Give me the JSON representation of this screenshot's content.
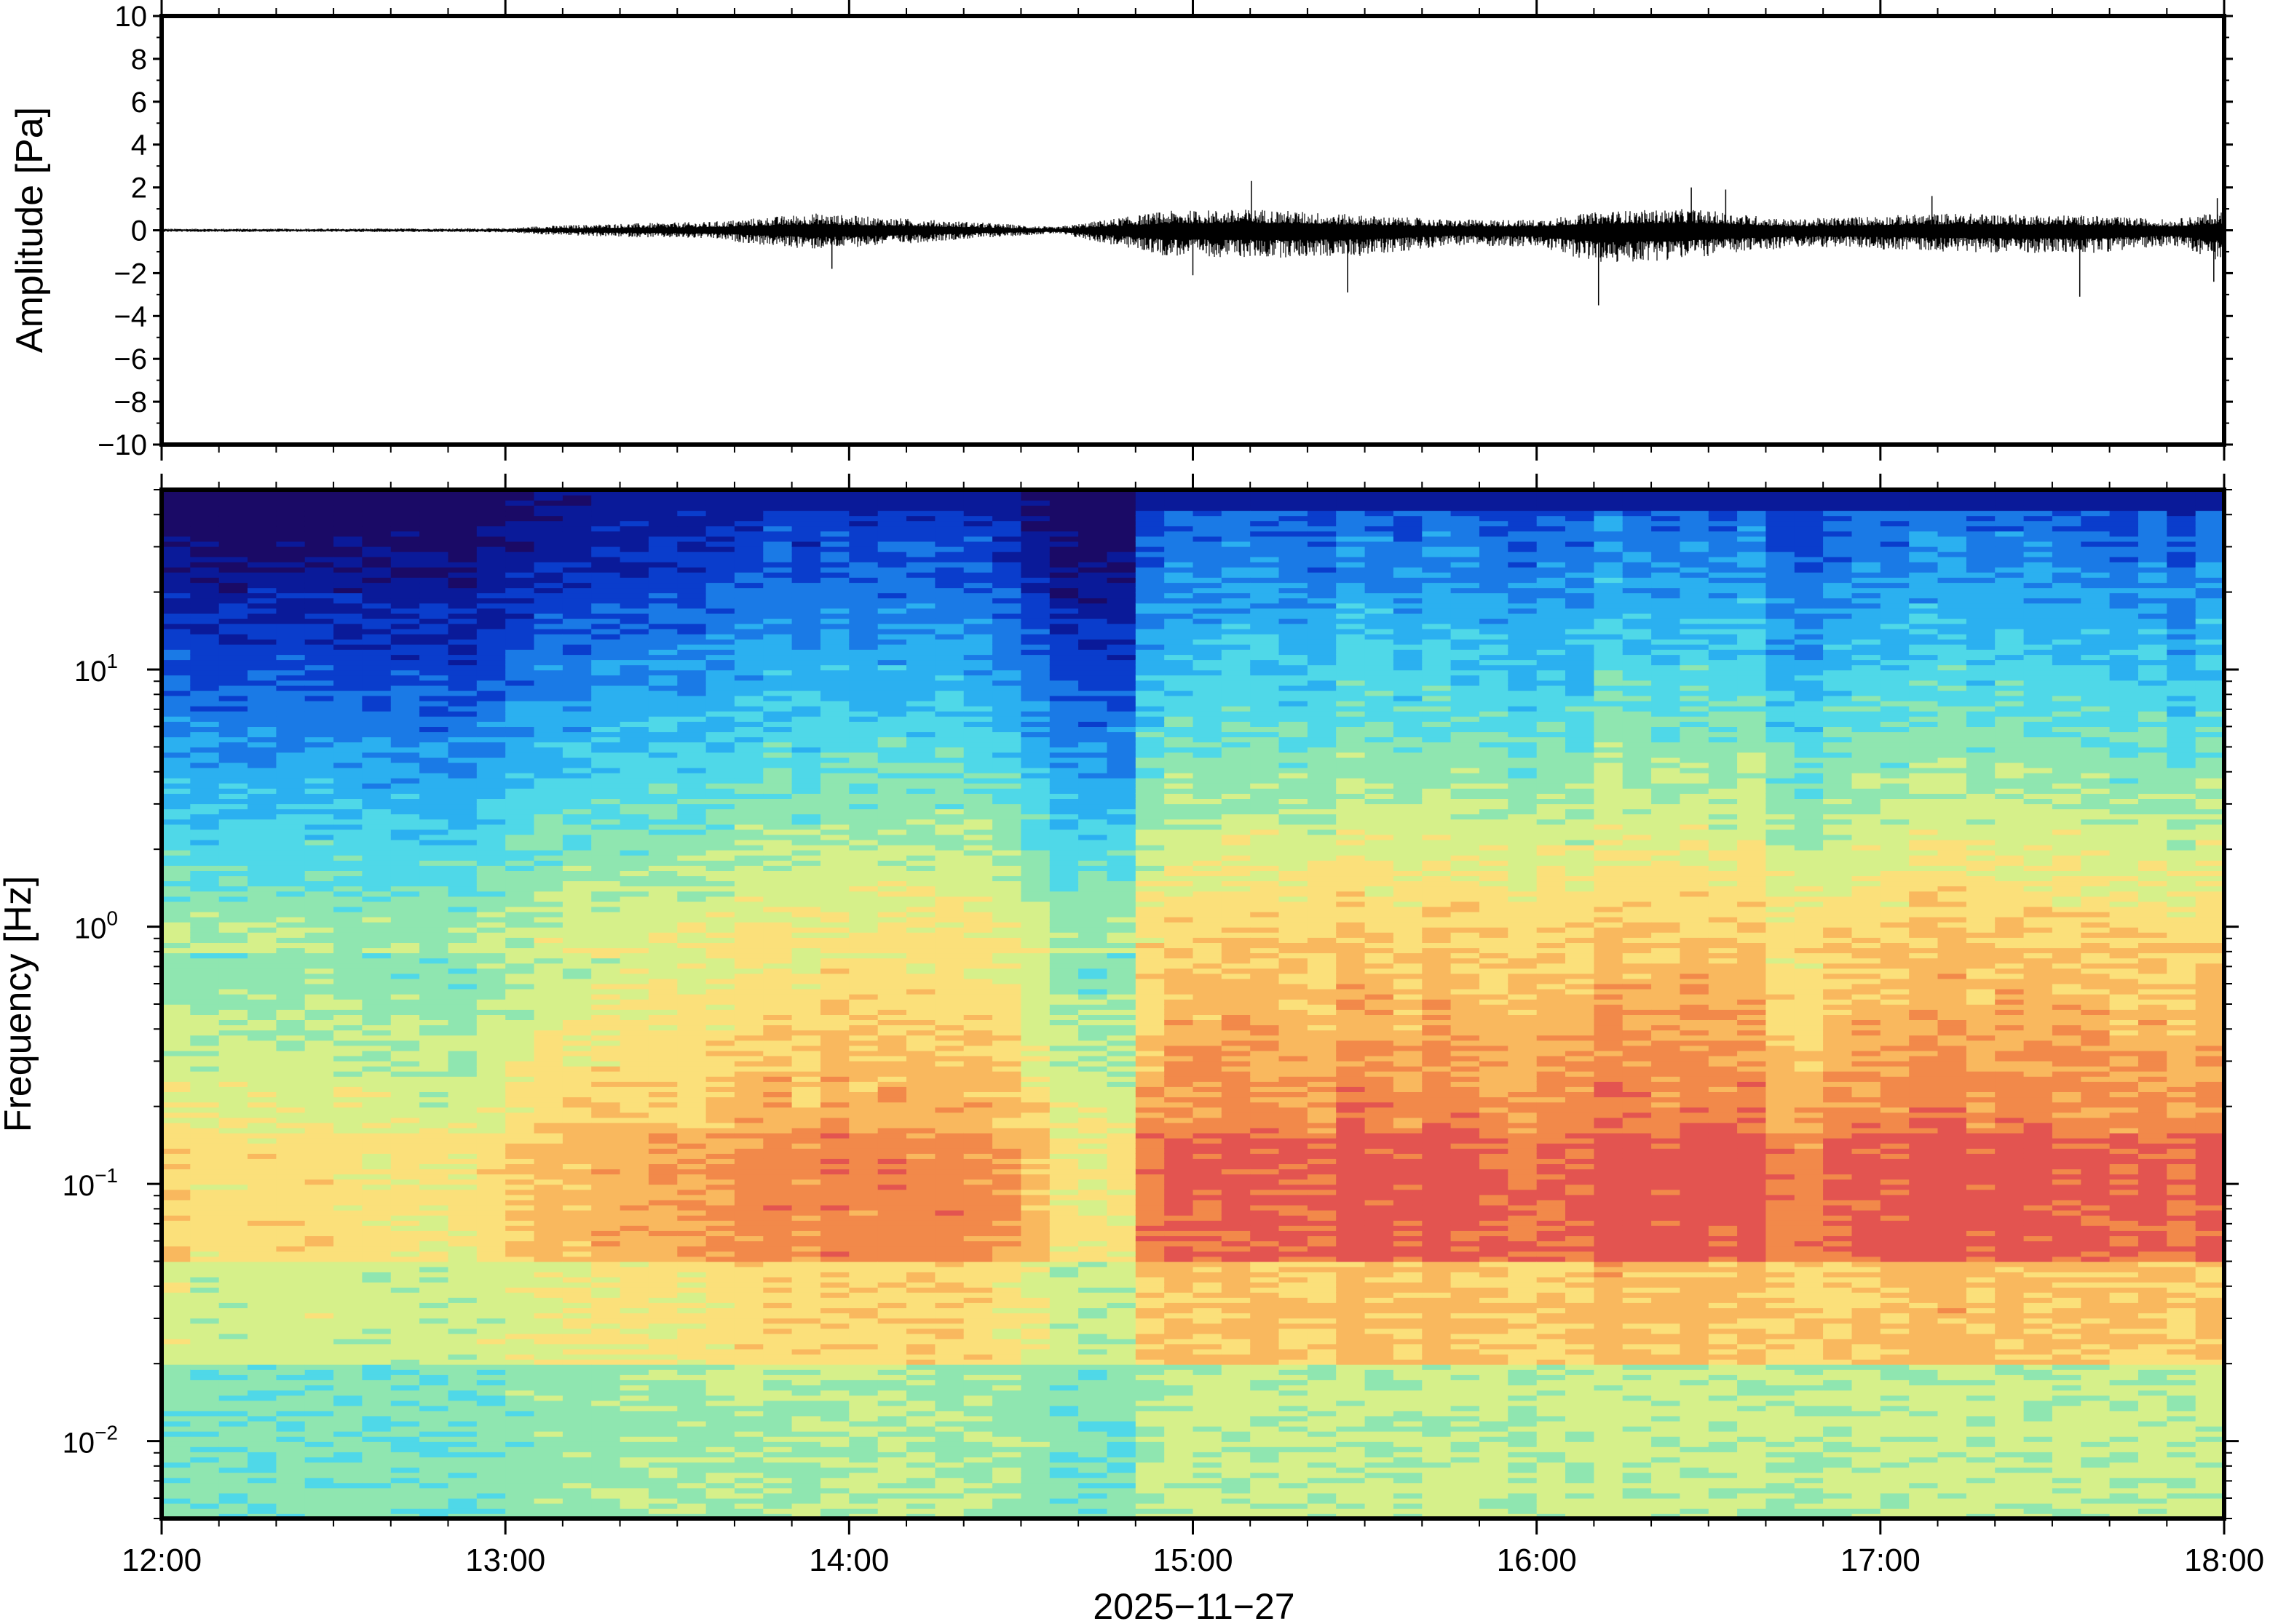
{
  "chart_data": [
    {
      "type": "line",
      "panel": "waveform",
      "ylabel": "Amplitude [Pa]",
      "ylim": [
        -10,
        10
      ],
      "yticks": [
        "10",
        "8",
        "6",
        "4",
        "2",
        "0",
        "−2",
        "−4",
        "−6",
        "−8",
        "−10"
      ],
      "ytick_values": [
        10,
        8,
        6,
        4,
        2,
        0,
        -2,
        -4,
        -6,
        -8,
        -10
      ],
      "xlim_hours": [
        12,
        18
      ],
      "envelope": {
        "hours": [
          12.0,
          12.5,
          13.0,
          13.1,
          13.3,
          13.6,
          13.75,
          13.9,
          14.1,
          14.35,
          14.5,
          14.6,
          14.92,
          15.2,
          15.5,
          15.75,
          16.0,
          16.2,
          16.45,
          16.75,
          16.85,
          17.2,
          17.6,
          17.85,
          18.0
        ],
        "pos": [
          0.08,
          0.08,
          0.1,
          0.2,
          0.3,
          0.4,
          0.6,
          0.8,
          0.6,
          0.4,
          0.25,
          0.15,
          0.9,
          1.0,
          0.7,
          0.5,
          0.5,
          0.9,
          1.0,
          0.5,
          0.6,
          0.8,
          0.7,
          0.5,
          0.9
        ],
        "neg": [
          0.08,
          0.08,
          0.1,
          0.2,
          0.3,
          0.4,
          0.7,
          0.9,
          0.7,
          0.4,
          0.25,
          0.15,
          1.2,
          1.3,
          1.2,
          0.7,
          0.8,
          1.6,
          1.3,
          0.8,
          0.8,
          1.0,
          1.1,
          0.7,
          1.5
        ],
        "peaks_up": [
          {
            "h": 15.17,
            "v": 2.3
          },
          {
            "h": 16.45,
            "v": 2.0
          },
          {
            "h": 16.55,
            "v": 1.9
          },
          {
            "h": 17.15,
            "v": 1.6
          },
          {
            "h": 17.98,
            "v": 1.5
          }
        ],
        "peaks_down": [
          {
            "h": 13.95,
            "v": -1.8
          },
          {
            "h": 15.45,
            "v": -2.9
          },
          {
            "h": 16.18,
            "v": -3.5
          },
          {
            "h": 17.58,
            "v": -3.1
          },
          {
            "h": 17.97,
            "v": -2.4
          },
          {
            "h": 15.0,
            "v": -2.1
          }
        ]
      }
    },
    {
      "type": "heatmap",
      "panel": "spectrogram",
      "ylabel": "Frequency [Hz]",
      "yscale": "log",
      "ylim": [
        0.005,
        50
      ],
      "ytick_values": [
        0.01,
        0.1,
        1,
        10
      ],
      "yticks": [
        {
          "base": "10",
          "exp": "−2"
        },
        {
          "base": "10",
          "exp": "−1"
        },
        {
          "base": "10",
          "exp": "0"
        },
        {
          "base": "10",
          "exp": "1"
        }
      ],
      "colormap": [
        "#1a0a66",
        "#0a1a99",
        "#0a3dcc",
        "#1a7ae6",
        "#2bb0f0",
        "#4fd8e8",
        "#8fe6b0",
        "#d6f08a",
        "#fbe07a",
        "#f9b85e",
        "#f2894a",
        "#e35450"
      ],
      "xlim_hours": [
        12,
        18
      ],
      "activity": {
        "hours": [
          12.0,
          12.5,
          12.9,
          13.1,
          13.3,
          13.5,
          13.75,
          14.0,
          14.3,
          14.5,
          14.6,
          14.8,
          14.9,
          15.2,
          15.5,
          15.8,
          16.0,
          16.2,
          16.5,
          16.8,
          17.0,
          17.3,
          17.6,
          17.9,
          18.0
        ],
        "level": [
          0.25,
          0.25,
          0.15,
          0.45,
          0.5,
          0.55,
          0.72,
          0.74,
          0.72,
          0.58,
          0.2,
          0.2,
          1.0,
          1.0,
          0.98,
          0.9,
          0.92,
          1.0,
          0.98,
          0.85,
          0.95,
          1.0,
          0.95,
          0.85,
          0.9
        ]
      }
    }
  ],
  "x_axis": {
    "ticks": [
      "12:00",
      "13:00",
      "14:00",
      "15:00",
      "16:00",
      "17:00",
      "18:00"
    ],
    "tick_hours": [
      12,
      13,
      14,
      15,
      16,
      17,
      18
    ],
    "date_label": "2025−11−27"
  }
}
